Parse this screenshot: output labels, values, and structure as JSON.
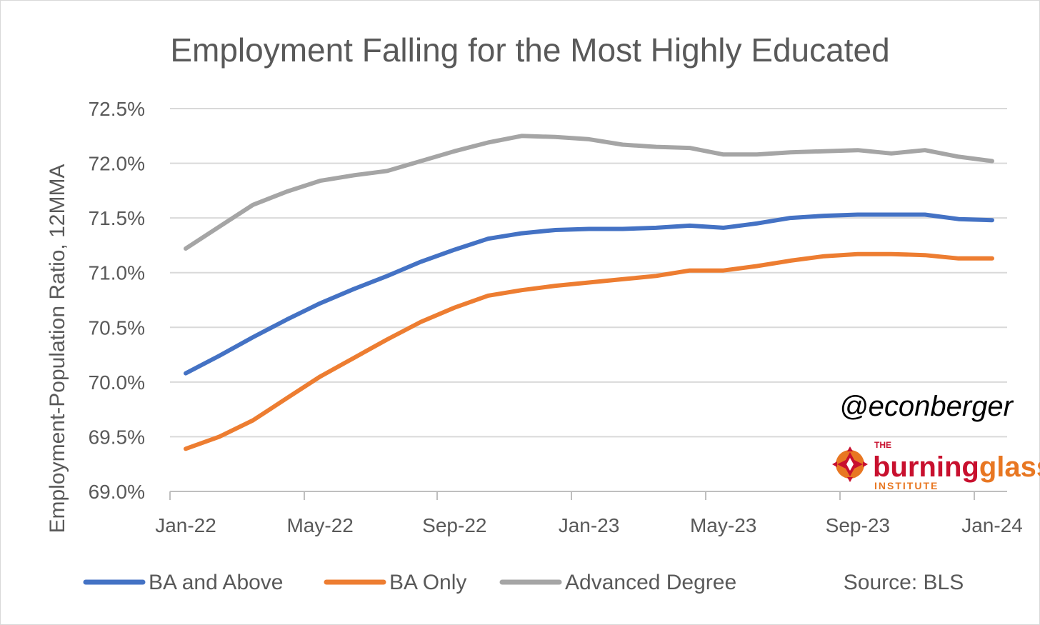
{
  "chart_data": {
    "type": "line",
    "title": "Employment Falling for the Most Highly Educated",
    "ylabel": "Employment-Population Ratio, 12MMA",
    "xlabel": "",
    "ylim": [
      69.0,
      72.5
    ],
    "yticks": [
      69.0,
      69.5,
      70.0,
      70.5,
      71.0,
      71.5,
      72.0,
      72.5
    ],
    "ytick_labels": [
      "69.0%",
      "69.5%",
      "70.0%",
      "70.5%",
      "71.0%",
      "71.5%",
      "72.0%",
      "72.5%"
    ],
    "x": [
      "Jan-22",
      "Feb-22",
      "Mar-22",
      "Apr-22",
      "May-22",
      "Jun-22",
      "Jul-22",
      "Aug-22",
      "Sep-22",
      "Oct-22",
      "Nov-22",
      "Dec-22",
      "Jan-23",
      "Feb-23",
      "Mar-23",
      "Apr-23",
      "May-23",
      "Jun-23",
      "Jul-23",
      "Aug-23",
      "Sep-23",
      "Oct-23",
      "Nov-23",
      "Dec-23",
      "Jan-24"
    ],
    "xtick_labels": [
      "Jan-22",
      "May-22",
      "Sep-22",
      "Jan-23",
      "May-23",
      "Sep-23",
      "Jan-24"
    ],
    "xtick_indices": [
      0,
      4,
      8,
      12,
      16,
      20,
      24
    ],
    "grid": true,
    "legend_position": "bottom",
    "series": [
      {
        "name": "BA and Above",
        "color": "#4472C4",
        "values": [
          70.08,
          70.24,
          70.41,
          70.57,
          70.72,
          70.85,
          70.97,
          71.1,
          71.21,
          71.31,
          71.36,
          71.39,
          71.4,
          71.4,
          71.41,
          71.43,
          71.41,
          71.45,
          71.5,
          71.52,
          71.53,
          71.53,
          71.53,
          71.49,
          71.48
        ]
      },
      {
        "name": "BA Only",
        "color": "#ED7D31",
        "values": [
          69.39,
          69.5,
          69.65,
          69.85,
          70.05,
          70.22,
          70.39,
          70.55,
          70.68,
          70.79,
          70.84,
          70.88,
          70.91,
          70.94,
          70.97,
          71.02,
          71.02,
          71.06,
          71.11,
          71.15,
          71.17,
          71.17,
          71.16,
          71.13,
          71.13
        ]
      },
      {
        "name": "Advanced Degree",
        "color": "#A5A5A5",
        "values": [
          71.22,
          71.42,
          71.62,
          71.74,
          71.84,
          71.89,
          71.93,
          72.02,
          72.11,
          72.19,
          72.25,
          72.24,
          72.22,
          72.17,
          72.15,
          72.14,
          72.08,
          72.08,
          72.1,
          72.11,
          72.12,
          72.09,
          72.12,
          72.06,
          72.02
        ]
      }
    ],
    "annotations": {
      "source": "Source: BLS",
      "handle": "@econberger"
    }
  },
  "logo": {
    "top_text": "THE",
    "brand_first": "burning",
    "brand_second": "glass",
    "bottom_text": "INSTITUTE",
    "color_red": "#C8102E",
    "color_orange": "#E87722"
  }
}
